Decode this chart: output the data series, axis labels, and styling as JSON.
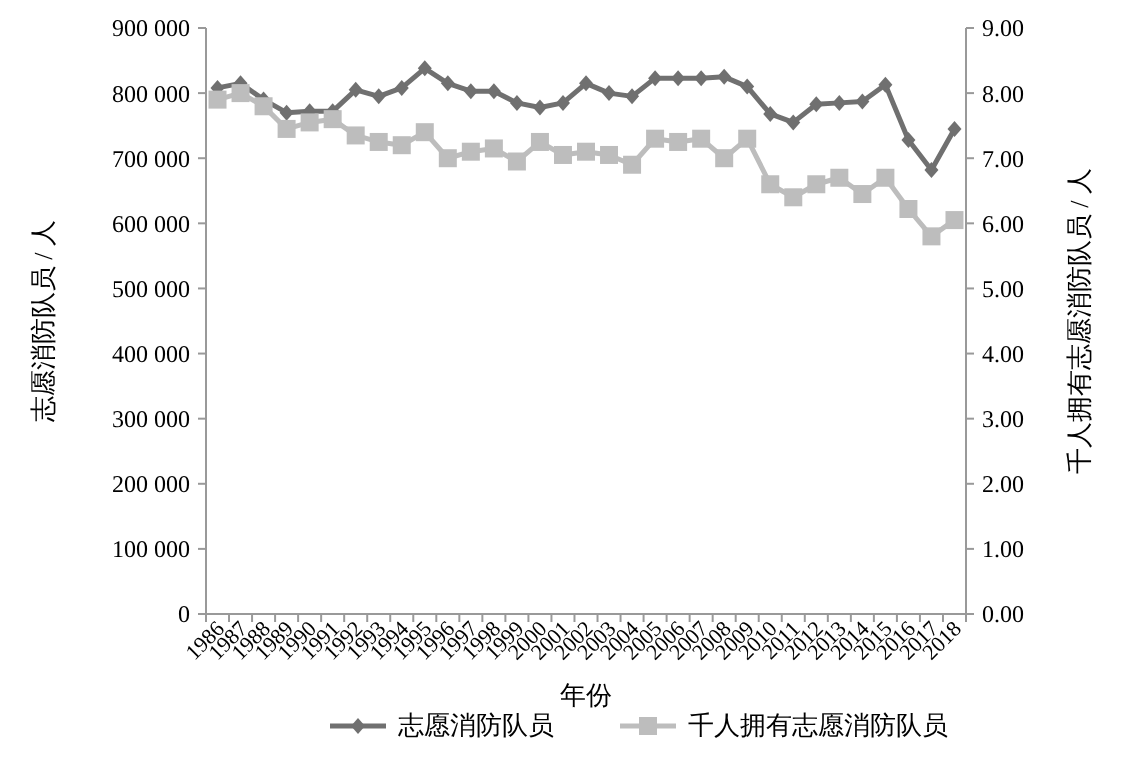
{
  "chart_data": {
    "type": "line",
    "xlabel": "年份",
    "ylabel": "志愿消防队员 / 人",
    "y2label": "千人拥有志愿消防队员 / 人",
    "categories": [
      "1986",
      "1987",
      "1988",
      "1989",
      "1990",
      "1991",
      "1992",
      "1993",
      "1994",
      "1995",
      "1996",
      "1997",
      "1998",
      "1999",
      "2000",
      "2001",
      "2002",
      "2003",
      "2004",
      "2005",
      "2006",
      "2007",
      "2008",
      "2009",
      "2010",
      "2011",
      "2012",
      "2013",
      "2014",
      "2015",
      "2016",
      "2017",
      "2018"
    ],
    "series": [
      {
        "name": "志愿消防队员",
        "color": "#707070",
        "marker": "diamond",
        "values": [
          808000,
          815000,
          790000,
          770000,
          772000,
          772000,
          805000,
          795000,
          808000,
          838000,
          815000,
          803000,
          803000,
          785000,
          778000,
          785000,
          815000,
          800000,
          795000,
          823000,
          823000,
          823000,
          825000,
          810000,
          768000,
          755000,
          783000,
          785000,
          787000,
          813000,
          728000,
          682000,
          745000
        ]
      },
      {
        "name": "千人拥有志愿消防队员",
        "color": "#bdbdbd",
        "marker": "square",
        "axis": "y2",
        "values": [
          7.9,
          8.0,
          7.8,
          7.45,
          7.55,
          7.6,
          7.35,
          7.25,
          7.2,
          7.4,
          7.0,
          7.1,
          7.15,
          6.95,
          7.25,
          7.05,
          7.1,
          7.05,
          6.9,
          7.3,
          7.25,
          7.3,
          7.0,
          7.3,
          6.6,
          6.4,
          6.6,
          6.7,
          6.45,
          6.7,
          6.22,
          5.8,
          6.05
        ]
      }
    ],
    "ylim": [
      0,
      900000
    ],
    "yticks": [
      {
        "value": 0,
        "label": "0"
      },
      {
        "value": 100000,
        "label": "100 000"
      },
      {
        "value": 200000,
        "label": "200 000"
      },
      {
        "value": 300000,
        "label": "300 000"
      },
      {
        "value": 400000,
        "label": "400 000"
      },
      {
        "value": 500000,
        "label": "500 000"
      },
      {
        "value": 600000,
        "label": "600 000"
      },
      {
        "value": 700000,
        "label": "700 000"
      },
      {
        "value": 800000,
        "label": "800 000"
      },
      {
        "value": 900000,
        "label": "900 000"
      }
    ],
    "y2lim": [
      0,
      9
    ],
    "y2ticks": [
      {
        "value": 0,
        "label": "0.00"
      },
      {
        "value": 1,
        "label": "1.00"
      },
      {
        "value": 2,
        "label": "2.00"
      },
      {
        "value": 3,
        "label": "3.00"
      },
      {
        "value": 4,
        "label": "4.00"
      },
      {
        "value": 5,
        "label": "5.00"
      },
      {
        "value": 6,
        "label": "6.00"
      },
      {
        "value": 7,
        "label": "7.00"
      },
      {
        "value": 8,
        "label": "8.00"
      },
      {
        "value": 9,
        "label": "9.00"
      }
    ],
    "grid": false,
    "legend": "bottom"
  }
}
